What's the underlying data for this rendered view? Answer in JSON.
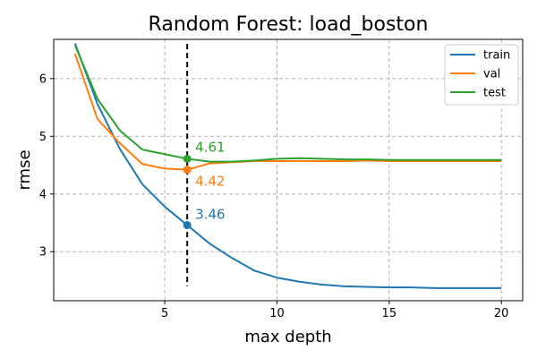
{
  "chart_data": {
    "type": "line",
    "title": "Random Forest: load_boston",
    "xlabel": "max depth",
    "ylabel": "rmse",
    "xlim": [
      0.05,
      20.95
    ],
    "ylim": [
      2.15,
      6.68
    ],
    "xticks": [
      5,
      10,
      15,
      20
    ],
    "yticks": [
      3,
      4,
      5,
      6
    ],
    "grid": true,
    "legend_position": "top-right",
    "x": [
      1,
      2,
      3,
      4,
      5,
      6,
      7,
      8,
      9,
      10,
      11,
      12,
      13,
      14,
      15,
      16,
      17,
      18,
      19,
      20
    ],
    "series": [
      {
        "name": "train",
        "color": "#1f77b4",
        "values": [
          6.61,
          5.56,
          4.78,
          4.17,
          3.78,
          3.46,
          3.14,
          2.89,
          2.67,
          2.55,
          2.48,
          2.43,
          2.4,
          2.39,
          2.38,
          2.38,
          2.37,
          2.37,
          2.37,
          2.37
        ]
      },
      {
        "name": "val",
        "color": "#ff7f0e",
        "values": [
          6.43,
          5.3,
          4.88,
          4.52,
          4.44,
          4.42,
          4.53,
          4.55,
          4.57,
          4.57,
          4.57,
          4.57,
          4.57,
          4.58,
          4.57,
          4.57,
          4.57,
          4.57,
          4.57,
          4.57
        ]
      },
      {
        "name": "test",
        "color": "#2ca02c",
        "values": [
          6.58,
          5.65,
          5.1,
          4.77,
          4.69,
          4.61,
          4.56,
          4.56,
          4.58,
          4.61,
          4.62,
          4.61,
          4.6,
          4.6,
          4.59,
          4.59,
          4.59,
          4.59,
          4.59,
          4.59
        ]
      }
    ],
    "vline": {
      "x": 6,
      "ymin": 2.4,
      "ymax": 6.6,
      "color": "#000000",
      "style": "dashed"
    },
    "annotations": [
      {
        "series": "test",
        "x": 6,
        "y": 4.61,
        "text": "4.61",
        "color": "#2ca02c"
      },
      {
        "series": "val",
        "x": 6,
        "y": 4.42,
        "text": "4.42",
        "color": "#ff7f0e"
      },
      {
        "series": "train",
        "x": 6,
        "y": 3.46,
        "text": "3.46",
        "color": "#1f77b4"
      }
    ]
  }
}
